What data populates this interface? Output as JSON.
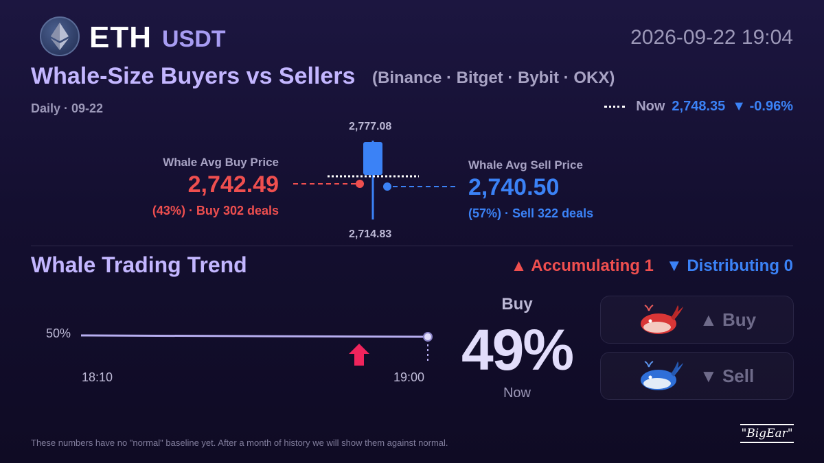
{
  "header": {
    "base": "ETH",
    "quote": "USDT",
    "datetime": "2026-09-22 19:04",
    "logo_icon": "ethereum-icon"
  },
  "title": "Whale-Size Buyers vs Sellers",
  "exchanges": "(Binance · Bitget · Bybit · OKX)",
  "period": "Daily · 09-22",
  "now": {
    "label": "Now",
    "price": "2,748.35",
    "change": "▼ -0.96%"
  },
  "buy": {
    "label": "Whale Avg Buy Price",
    "price": "2,742.49",
    "deals": "(43%) · Buy 302 deals"
  },
  "sell": {
    "label": "Whale Avg Sell Price",
    "price": "2,740.50",
    "deals": "(57%) · Sell 322 deals"
  },
  "candle": {
    "high": "2,777.08",
    "low": "2,714.83"
  },
  "trend": {
    "title": "Whale Trading Trend",
    "accumulating": "▲ Accumulating 1",
    "distributing": "▼ Distributing 0",
    "y_label": "50%",
    "x_start": "18:10",
    "x_end": "19:00",
    "big_label": "Buy",
    "big_value": "49%",
    "big_sub": "Now"
  },
  "actions": {
    "buy_label": "▲ Buy",
    "sell_label": "▼ Sell"
  },
  "colors": {
    "buy": "#ef4f4f",
    "sell": "#3b82f6",
    "accent": "#c3b6ff"
  },
  "footnote": "These numbers have no \"normal\" baseline yet. After a month of history we will show them against normal.",
  "brand": "\"BigEar\""
}
